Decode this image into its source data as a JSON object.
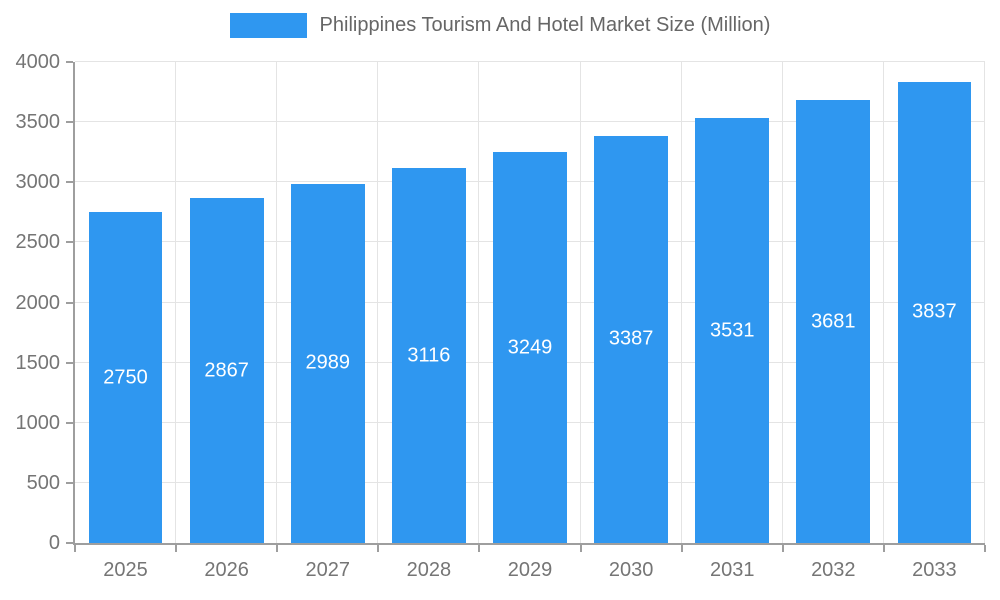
{
  "chart_data": {
    "type": "bar",
    "title": "Philippines Tourism And Hotel Market Size (Million)",
    "categories": [
      "2025",
      "2026",
      "2027",
      "2028",
      "2029",
      "2030",
      "2031",
      "2032",
      "2033"
    ],
    "values": [
      2750,
      2867,
      2989,
      3116,
      3249,
      3387,
      3531,
      3681,
      3837
    ],
    "xlabel": "",
    "ylabel": "",
    "ylim": [
      0,
      4000
    ],
    "yticks": [
      0,
      500,
      1000,
      1500,
      2000,
      2500,
      3000,
      3500,
      4000
    ],
    "grid": true,
    "legend_position": "top",
    "bar_color": "#2F97F0",
    "bar_label_color": "#ffffff",
    "axis_color": "#9e9e9e",
    "tick_text_color": "#757575",
    "title_text_color": "#666666"
  }
}
